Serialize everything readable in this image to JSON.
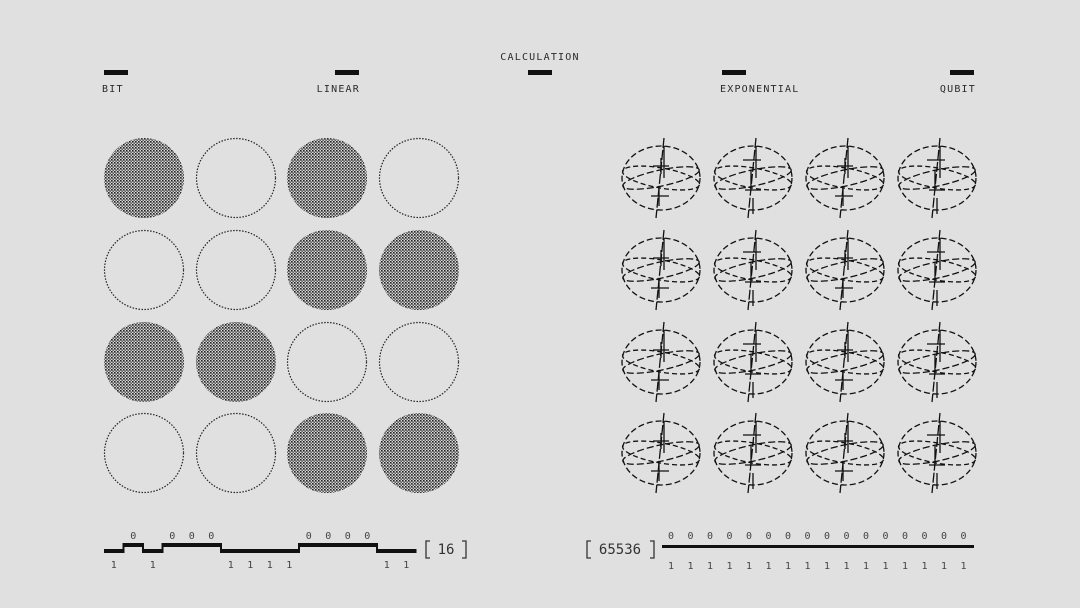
{
  "header": {
    "center_label": "CALCULATION",
    "left_label": "BIT",
    "left_mid_label": "LINEAR",
    "right_mid_label": "EXPONENTIAL",
    "right_label": "QUBIT"
  },
  "bits": {
    "states": [
      1,
      0,
      1,
      0,
      0,
      0,
      1,
      1,
      1,
      1,
      0,
      0,
      0,
      0,
      1,
      1
    ],
    "count_label": "16",
    "zero_label": "0",
    "one_label": "1"
  },
  "qubits": {
    "count": 16,
    "count_label": "65536",
    "zero_label": "0",
    "one_label": "1"
  },
  "colors": {
    "background": "#e0e0e0",
    "ink": "#111111"
  }
}
